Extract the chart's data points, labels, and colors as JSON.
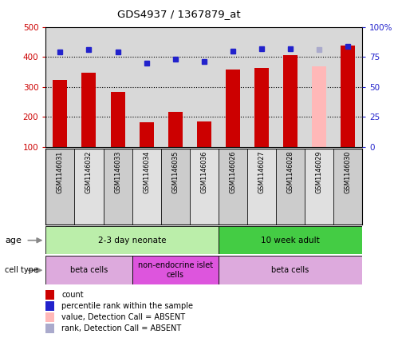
{
  "title": "GDS4937 / 1367879_at",
  "samples": [
    "GSM1146031",
    "GSM1146032",
    "GSM1146033",
    "GSM1146034",
    "GSM1146035",
    "GSM1146036",
    "GSM1146026",
    "GSM1146027",
    "GSM1146028",
    "GSM1146029",
    "GSM1146030"
  ],
  "count_values": [
    325,
    348,
    285,
    182,
    217,
    185,
    358,
    363,
    407,
    370,
    437
  ],
  "rank_values": [
    79,
    81,
    79,
    70,
    73,
    71,
    80,
    82,
    82,
    81,
    84
  ],
  "bar_colors": [
    "#cc0000",
    "#cc0000",
    "#cc0000",
    "#cc0000",
    "#cc0000",
    "#cc0000",
    "#cc0000",
    "#cc0000",
    "#cc0000",
    "#ffb8b8",
    "#cc0000"
  ],
  "rank_colors": [
    "#2222cc",
    "#2222cc",
    "#2222cc",
    "#2222cc",
    "#2222cc",
    "#2222cc",
    "#2222cc",
    "#2222cc",
    "#2222cc",
    "#aaaacc",
    "#2222cc"
  ],
  "ylim_left": [
    100,
    500
  ],
  "ylim_right": [
    0,
    100
  ],
  "yticks_left": [
    100,
    200,
    300,
    400,
    500
  ],
  "yticks_right": [
    0,
    25,
    50,
    75,
    100
  ],
  "ytick_labels_right": [
    "0",
    "25",
    "50",
    "75",
    "100%"
  ],
  "age_groups": [
    {
      "label": "2-3 day neonate",
      "start": 0,
      "end": 6,
      "color": "#bbeeaa"
    },
    {
      "label": "10 week adult",
      "start": 6,
      "end": 11,
      "color": "#44cc44"
    }
  ],
  "cell_type_groups": [
    {
      "label": "beta cells",
      "start": 0,
      "end": 3,
      "color": "#ddaadd"
    },
    {
      "label": "non-endocrine islet\ncells",
      "start": 3,
      "end": 6,
      "color": "#dd55dd"
    },
    {
      "label": "beta cells",
      "start": 6,
      "end": 11,
      "color": "#ddaadd"
    }
  ],
  "legend_items": [
    {
      "color": "#cc0000",
      "label": "count"
    },
    {
      "color": "#2222cc",
      "label": "percentile rank within the sample"
    },
    {
      "color": "#ffb8b8",
      "label": "value, Detection Call = ABSENT"
    },
    {
      "color": "#aaaacc",
      "label": "rank, Detection Call = ABSENT"
    }
  ],
  "bar_width": 0.5,
  "bg_color": "#d8d8d8",
  "label_bg_even": "#cccccc",
  "label_bg_odd": "#e0e0e0"
}
